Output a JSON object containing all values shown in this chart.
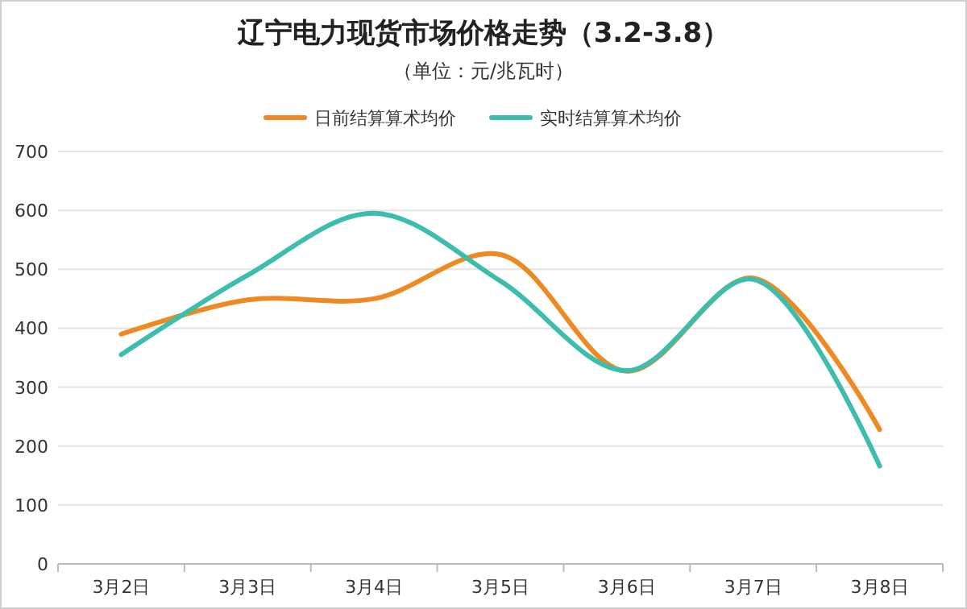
{
  "chart_data": {
    "type": "line",
    "title": "辽宁电力现货市场价格走势（3.2-3.8）",
    "subtitle": "（单位：元/兆瓦时）",
    "categories": [
      "3月2日",
      "3月3日",
      "3月4日",
      "3月5日",
      "3月6日",
      "3月7日",
      "3月8日"
    ],
    "series": [
      {
        "name": "日前结算算术均价",
        "color": "#ee8a23",
        "values": [
          390,
          448,
          450,
          525,
          327,
          485,
          228
        ]
      },
      {
        "name": "实时结算算术均价",
        "color": "#3dbdae",
        "values": [
          355,
          490,
          595,
          480,
          328,
          483,
          166
        ]
      }
    ],
    "ylim": [
      0,
      700
    ],
    "yticks": [
      0,
      100,
      200,
      300,
      400,
      500,
      600,
      700
    ],
    "grid": "y",
    "legend": "top",
    "line_style": "solid"
  }
}
